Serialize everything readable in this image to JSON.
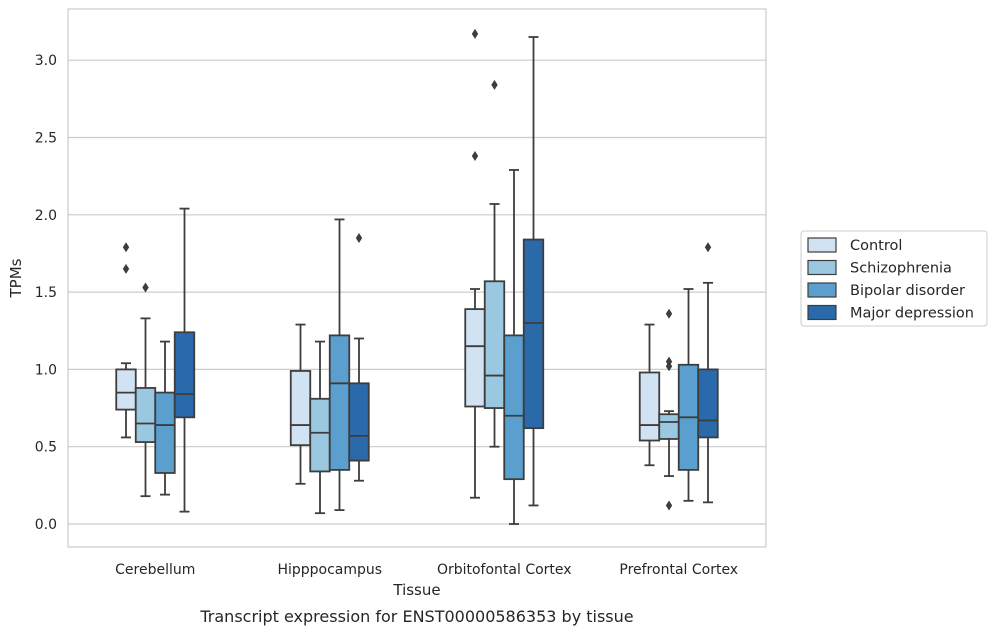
{
  "caption": "Transcript expression for ENST00000586353 by tissue",
  "chart_data": {
    "type": "box",
    "xlabel": "Tissue",
    "ylabel": "TPMs",
    "ylim": [
      -0.15,
      3.3
    ],
    "y_ticks": [
      "0.0",
      "0.5",
      "1.0",
      "1.5",
      "2.0",
      "2.5",
      "3.0"
    ],
    "grid": "horizontal",
    "legend_position": "right",
    "categories": [
      "Cerebellum",
      "Hipppocampus",
      "Orbitofontal Cortex",
      "Prefrontal Cortex"
    ],
    "series": [
      {
        "name": "Control",
        "color": "#d1e2f2",
        "boxes": [
          {
            "whisker_low": 0.56,
            "q1": 0.74,
            "median": 0.85,
            "q3": 1.0,
            "whisker_high": 1.04,
            "outliers": [
              1.79,
              1.65
            ]
          },
          {
            "whisker_low": 0.26,
            "q1": 0.51,
            "median": 0.64,
            "q3": 0.99,
            "whisker_high": 1.29,
            "outliers": []
          },
          {
            "whisker_low": 0.17,
            "q1": 0.76,
            "median": 1.15,
            "q3": 1.39,
            "whisker_high": 1.52,
            "outliers": [
              3.17,
              2.38
            ]
          },
          {
            "whisker_low": 0.38,
            "q1": 0.54,
            "median": 0.64,
            "q3": 0.98,
            "whisker_high": 1.29,
            "outliers": []
          }
        ]
      },
      {
        "name": "Schizophrenia",
        "color": "#9ac8e0",
        "boxes": [
          {
            "whisker_low": 0.18,
            "q1": 0.53,
            "median": 0.65,
            "q3": 0.88,
            "whisker_high": 1.33,
            "outliers": [
              1.53
            ]
          },
          {
            "whisker_low": 0.07,
            "q1": 0.34,
            "median": 0.59,
            "q3": 0.81,
            "whisker_high": 1.18,
            "outliers": []
          },
          {
            "whisker_low": 0.5,
            "q1": 0.75,
            "median": 0.96,
            "q3": 1.57,
            "whisker_high": 2.07,
            "outliers": [
              2.84
            ]
          },
          {
            "whisker_low": 0.31,
            "q1": 0.55,
            "median": 0.66,
            "q3": 0.71,
            "whisker_high": 0.73,
            "outliers": [
              1.36,
              1.05,
              1.02,
              0.12
            ]
          }
        ]
      },
      {
        "name": "Bipolar disorder",
        "color": "#5a9fcd",
        "boxes": [
          {
            "whisker_low": 0.19,
            "q1": 0.33,
            "median": 0.64,
            "q3": 0.85,
            "whisker_high": 1.18,
            "outliers": []
          },
          {
            "whisker_low": 0.09,
            "q1": 0.35,
            "median": 0.91,
            "q3": 1.22,
            "whisker_high": 1.97,
            "outliers": []
          },
          {
            "whisker_low": 0.0,
            "q1": 0.29,
            "median": 0.7,
            "q3": 1.22,
            "whisker_high": 2.29,
            "outliers": []
          },
          {
            "whisker_low": 0.15,
            "q1": 0.35,
            "median": 0.69,
            "q3": 1.03,
            "whisker_high": 1.52,
            "outliers": []
          }
        ]
      },
      {
        "name": "Major depression",
        "color": "#2a6aaa",
        "boxes": [
          {
            "whisker_low": 0.08,
            "q1": 0.69,
            "median": 0.84,
            "q3": 1.24,
            "whisker_high": 2.04,
            "outliers": []
          },
          {
            "whisker_low": 0.28,
            "q1": 0.41,
            "median": 0.57,
            "q3": 0.91,
            "whisker_high": 1.2,
            "outliers": [
              1.85
            ]
          },
          {
            "whisker_low": 0.12,
            "q1": 0.62,
            "median": 1.3,
            "q3": 1.84,
            "whisker_high": 3.15,
            "outliers": []
          },
          {
            "whisker_low": 0.14,
            "q1": 0.56,
            "median": 0.67,
            "q3": 1.0,
            "whisker_high": 1.56,
            "outliers": [
              1.79
            ]
          }
        ]
      }
    ]
  }
}
